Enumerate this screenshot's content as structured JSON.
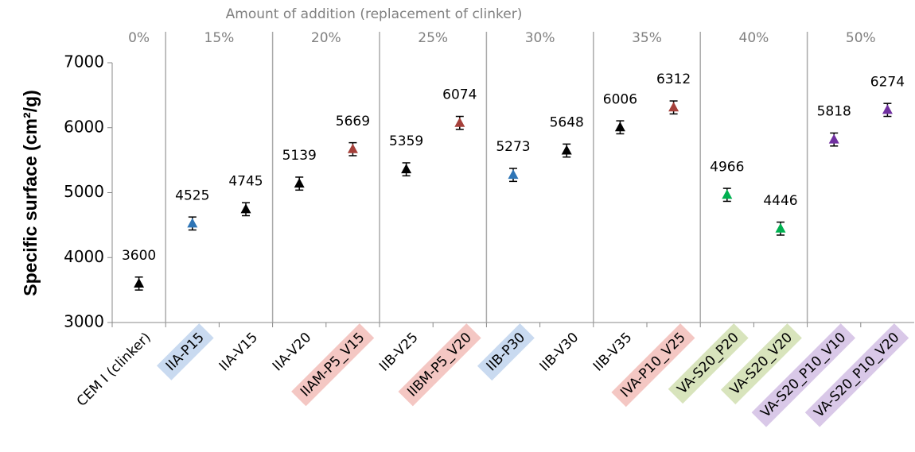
{
  "chart_data": {
    "type": "scatter",
    "title": "Amount of addition (replacement of clinker)",
    "y_label": "Specific surface (cm²/g)",
    "categories": [
      "CEM I (clinker)",
      "IIA-P15",
      "IIA-V15",
      "IIA-V20",
      "IIAM-P5_V15",
      "IIB-V25",
      "IIBM-P5_V20",
      "IIB-P30",
      "IIB-V30",
      "IIB-V35",
      "IVA-P10_V25",
      "VA-S20_P20",
      "VA-S20_V20",
      "VA-S20_P10_V10",
      "VA-S20_P10_V20"
    ],
    "values": [
      3600,
      4525,
      4745,
      5139,
      5669,
      5359,
      6074,
      5273,
      5648,
      6006,
      6312,
      4966,
      4446,
      5818,
      6274
    ],
    "errors": [
      100,
      100,
      100,
      100,
      100,
      100,
      100,
      100,
      100,
      100,
      100,
      100,
      100,
      100,
      100
    ],
    "colors": [
      "#000000",
      "#2e75b6",
      "#000000",
      "#000000",
      "#a5403a",
      "#000000",
      "#a5403a",
      "#2e75b6",
      "#000000",
      "#000000",
      "#a5403a",
      "#00b050",
      "#00b050",
      "#7030a0",
      "#7030a0"
    ],
    "label_highlights": [
      null,
      "#c9daf0",
      null,
      null,
      "#f4c7c3",
      null,
      "#f4c7c3",
      "#c9daf0",
      null,
      null,
      "#f4c7c3",
      "#d8e4bc",
      "#d8e4bc",
      "#d9c8e8",
      "#d9c8e8"
    ],
    "group_labels": [
      "0%",
      "15%",
      "20%",
      "25%",
      "30%",
      "35%",
      "40%",
      "50%"
    ],
    "group": [
      0,
      1,
      1,
      2,
      2,
      3,
      3,
      4,
      4,
      5,
      5,
      6,
      6,
      7,
      7
    ],
    "ylim": [
      3000,
      7000
    ],
    "yticks": [
      3000,
      4000,
      5000,
      6000,
      7000
    ]
  }
}
